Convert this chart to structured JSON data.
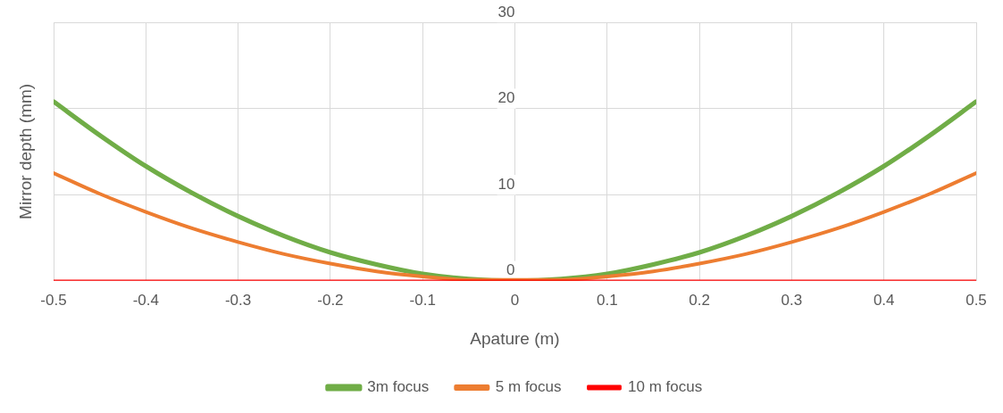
{
  "chart_data": {
    "type": "line",
    "xlabel": "Apature (m)",
    "ylabel": "Mirror depth (mm)",
    "x": [
      -0.5,
      -0.45,
      -0.4,
      -0.35,
      -0.3,
      -0.25,
      -0.2,
      -0.15,
      -0.1,
      -0.05,
      0,
      0.05,
      0.1,
      0.15,
      0.2,
      0.25,
      0.3,
      0.35,
      0.4,
      0.45,
      0.5
    ],
    "series": [
      {
        "name": "3m focus",
        "color": "#70ad47",
        "values": [
          20.8,
          16.9,
          13.3,
          10.2,
          7.5,
          5.2,
          3.3,
          1.9,
          0.8,
          0.2,
          0,
          0.2,
          0.8,
          1.9,
          3.3,
          5.2,
          7.5,
          10.2,
          13.3,
          16.9,
          20.8
        ]
      },
      {
        "name": "5 m focus",
        "color": "#ed7d31",
        "values": [
          12.5,
          10.1,
          8,
          6.1,
          4.5,
          3.1,
          2,
          1.1,
          0.5,
          0.1,
          null,
          0.1,
          0.5,
          1.1,
          2,
          3.1,
          4.5,
          6.1,
          8,
          10.1,
          12.5
        ]
      },
      {
        "name": "10 m focus",
        "color": "#ff0000",
        "values": [
          0,
          0,
          0,
          0,
          0,
          0,
          0,
          0,
          0,
          0,
          0,
          0,
          0,
          0,
          0,
          0,
          0,
          0,
          0,
          0,
          0
        ]
      }
    ],
    "xlim": [
      -0.5,
      0.5
    ],
    "xticks": [
      -0.5,
      -0.4,
      -0.3,
      -0.2,
      -0.1,
      0,
      0.1,
      0.2,
      0.3,
      0.4,
      0.5
    ],
    "ylim": [
      0,
      30
    ],
    "yticks": [
      0,
      10,
      20,
      30
    ],
    "grid": true,
    "legend": "bottom",
    "marker": "none",
    "line_style": "solid"
  }
}
